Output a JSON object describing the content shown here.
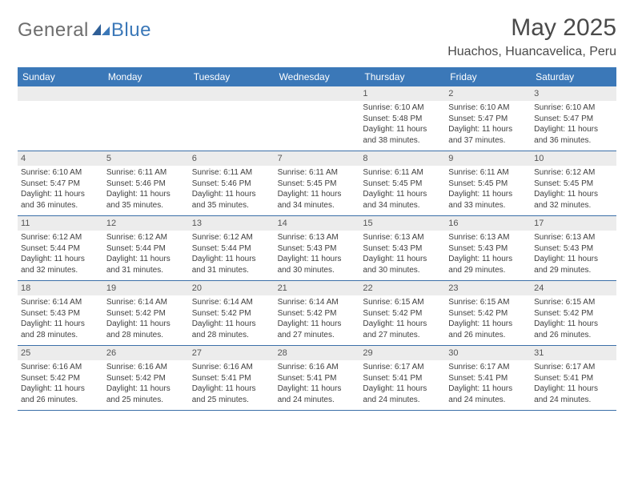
{
  "brand": {
    "word1": "General",
    "word2": "Blue"
  },
  "colors": {
    "header_bg": "#3b78b8",
    "rule": "#3b6fa8",
    "daynum_bg": "#ececec",
    "text": "#3f3f3f"
  },
  "title": "May 2025",
  "location": "Huachos, Huancavelica, Peru",
  "day_names": [
    "Sunday",
    "Monday",
    "Tuesday",
    "Wednesday",
    "Thursday",
    "Friday",
    "Saturday"
  ],
  "weeks": [
    [
      {
        "n": "",
        "sr": "",
        "ss": "",
        "dl": ""
      },
      {
        "n": "",
        "sr": "",
        "ss": "",
        "dl": ""
      },
      {
        "n": "",
        "sr": "",
        "ss": "",
        "dl": ""
      },
      {
        "n": "",
        "sr": "",
        "ss": "",
        "dl": ""
      },
      {
        "n": "1",
        "sr": "Sunrise: 6:10 AM",
        "ss": "Sunset: 5:48 PM",
        "dl": "Daylight: 11 hours and 38 minutes."
      },
      {
        "n": "2",
        "sr": "Sunrise: 6:10 AM",
        "ss": "Sunset: 5:47 PM",
        "dl": "Daylight: 11 hours and 37 minutes."
      },
      {
        "n": "3",
        "sr": "Sunrise: 6:10 AM",
        "ss": "Sunset: 5:47 PM",
        "dl": "Daylight: 11 hours and 36 minutes."
      }
    ],
    [
      {
        "n": "4",
        "sr": "Sunrise: 6:10 AM",
        "ss": "Sunset: 5:47 PM",
        "dl": "Daylight: 11 hours and 36 minutes."
      },
      {
        "n": "5",
        "sr": "Sunrise: 6:11 AM",
        "ss": "Sunset: 5:46 PM",
        "dl": "Daylight: 11 hours and 35 minutes."
      },
      {
        "n": "6",
        "sr": "Sunrise: 6:11 AM",
        "ss": "Sunset: 5:46 PM",
        "dl": "Daylight: 11 hours and 35 minutes."
      },
      {
        "n": "7",
        "sr": "Sunrise: 6:11 AM",
        "ss": "Sunset: 5:45 PM",
        "dl": "Daylight: 11 hours and 34 minutes."
      },
      {
        "n": "8",
        "sr": "Sunrise: 6:11 AM",
        "ss": "Sunset: 5:45 PM",
        "dl": "Daylight: 11 hours and 34 minutes."
      },
      {
        "n": "9",
        "sr": "Sunrise: 6:11 AM",
        "ss": "Sunset: 5:45 PM",
        "dl": "Daylight: 11 hours and 33 minutes."
      },
      {
        "n": "10",
        "sr": "Sunrise: 6:12 AM",
        "ss": "Sunset: 5:45 PM",
        "dl": "Daylight: 11 hours and 32 minutes."
      }
    ],
    [
      {
        "n": "11",
        "sr": "Sunrise: 6:12 AM",
        "ss": "Sunset: 5:44 PM",
        "dl": "Daylight: 11 hours and 32 minutes."
      },
      {
        "n": "12",
        "sr": "Sunrise: 6:12 AM",
        "ss": "Sunset: 5:44 PM",
        "dl": "Daylight: 11 hours and 31 minutes."
      },
      {
        "n": "13",
        "sr": "Sunrise: 6:12 AM",
        "ss": "Sunset: 5:44 PM",
        "dl": "Daylight: 11 hours and 31 minutes."
      },
      {
        "n": "14",
        "sr": "Sunrise: 6:13 AM",
        "ss": "Sunset: 5:43 PM",
        "dl": "Daylight: 11 hours and 30 minutes."
      },
      {
        "n": "15",
        "sr": "Sunrise: 6:13 AM",
        "ss": "Sunset: 5:43 PM",
        "dl": "Daylight: 11 hours and 30 minutes."
      },
      {
        "n": "16",
        "sr": "Sunrise: 6:13 AM",
        "ss": "Sunset: 5:43 PM",
        "dl": "Daylight: 11 hours and 29 minutes."
      },
      {
        "n": "17",
        "sr": "Sunrise: 6:13 AM",
        "ss": "Sunset: 5:43 PM",
        "dl": "Daylight: 11 hours and 29 minutes."
      }
    ],
    [
      {
        "n": "18",
        "sr": "Sunrise: 6:14 AM",
        "ss": "Sunset: 5:43 PM",
        "dl": "Daylight: 11 hours and 28 minutes."
      },
      {
        "n": "19",
        "sr": "Sunrise: 6:14 AM",
        "ss": "Sunset: 5:42 PM",
        "dl": "Daylight: 11 hours and 28 minutes."
      },
      {
        "n": "20",
        "sr": "Sunrise: 6:14 AM",
        "ss": "Sunset: 5:42 PM",
        "dl": "Daylight: 11 hours and 28 minutes."
      },
      {
        "n": "21",
        "sr": "Sunrise: 6:14 AM",
        "ss": "Sunset: 5:42 PM",
        "dl": "Daylight: 11 hours and 27 minutes."
      },
      {
        "n": "22",
        "sr": "Sunrise: 6:15 AM",
        "ss": "Sunset: 5:42 PM",
        "dl": "Daylight: 11 hours and 27 minutes."
      },
      {
        "n": "23",
        "sr": "Sunrise: 6:15 AM",
        "ss": "Sunset: 5:42 PM",
        "dl": "Daylight: 11 hours and 26 minutes."
      },
      {
        "n": "24",
        "sr": "Sunrise: 6:15 AM",
        "ss": "Sunset: 5:42 PM",
        "dl": "Daylight: 11 hours and 26 minutes."
      }
    ],
    [
      {
        "n": "25",
        "sr": "Sunrise: 6:16 AM",
        "ss": "Sunset: 5:42 PM",
        "dl": "Daylight: 11 hours and 26 minutes."
      },
      {
        "n": "26",
        "sr": "Sunrise: 6:16 AM",
        "ss": "Sunset: 5:42 PM",
        "dl": "Daylight: 11 hours and 25 minutes."
      },
      {
        "n": "27",
        "sr": "Sunrise: 6:16 AM",
        "ss": "Sunset: 5:41 PM",
        "dl": "Daylight: 11 hours and 25 minutes."
      },
      {
        "n": "28",
        "sr": "Sunrise: 6:16 AM",
        "ss": "Sunset: 5:41 PM",
        "dl": "Daylight: 11 hours and 24 minutes."
      },
      {
        "n": "29",
        "sr": "Sunrise: 6:17 AM",
        "ss": "Sunset: 5:41 PM",
        "dl": "Daylight: 11 hours and 24 minutes."
      },
      {
        "n": "30",
        "sr": "Sunrise: 6:17 AM",
        "ss": "Sunset: 5:41 PM",
        "dl": "Daylight: 11 hours and 24 minutes."
      },
      {
        "n": "31",
        "sr": "Sunrise: 6:17 AM",
        "ss": "Sunset: 5:41 PM",
        "dl": "Daylight: 11 hours and 24 minutes."
      }
    ]
  ]
}
